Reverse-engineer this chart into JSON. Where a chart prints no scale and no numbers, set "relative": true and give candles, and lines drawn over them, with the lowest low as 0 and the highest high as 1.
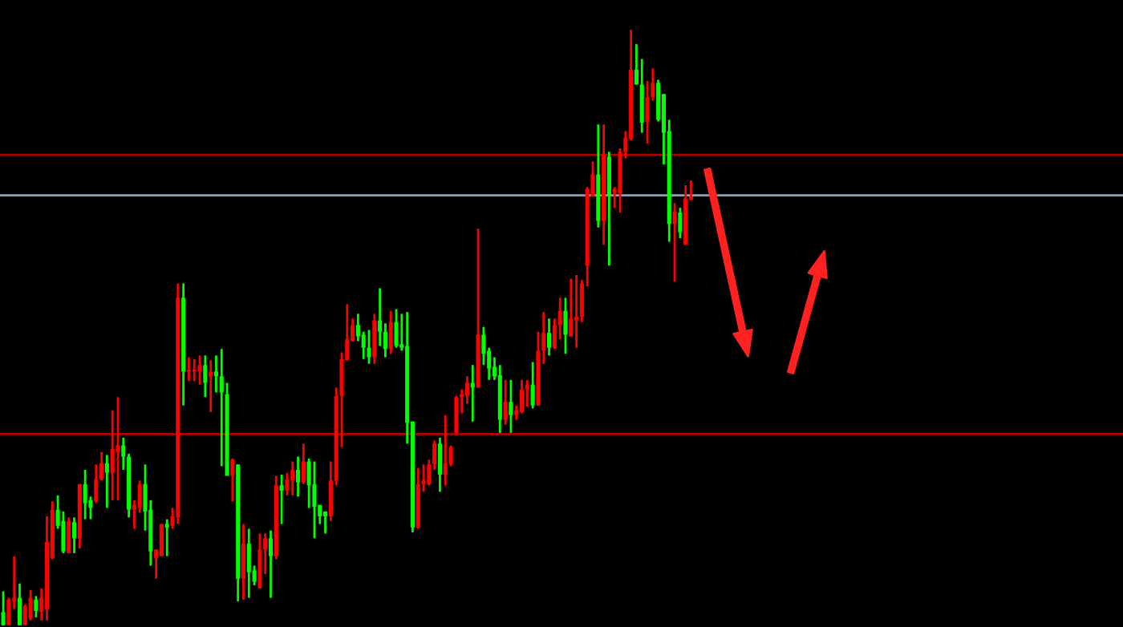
{
  "chart_data": {
    "type": "candlestick",
    "relative": true,
    "categories": [
      null,
      null,
      null,
      null,
      null,
      null,
      null,
      null,
      null,
      null,
      null,
      null,
      null,
      null,
      null,
      null,
      null,
      null,
      null,
      null,
      null,
      null,
      null,
      null,
      null,
      null,
      null,
      null,
      null,
      null,
      null,
      null,
      null,
      null,
      null,
      null,
      null,
      null,
      null,
      null,
      null,
      null,
      null,
      null,
      null,
      null,
      null,
      null,
      null,
      null,
      null,
      null,
      null,
      null,
      null,
      null,
      null,
      null,
      null,
      null,
      null,
      null,
      null,
      null,
      null,
      null,
      null,
      null,
      null,
      null,
      null,
      null,
      null,
      null,
      null,
      null,
      null,
      null,
      null,
      null,
      null,
      null,
      null,
      null,
      null,
      null,
      null,
      null,
      null,
      null,
      null,
      null,
      null,
      null,
      null,
      null,
      null,
      null,
      null,
      null,
      null,
      null,
      null,
      null,
      null,
      null,
      null,
      null,
      null,
      null,
      null,
      null,
      null,
      null,
      null,
      null,
      null,
      null,
      null,
      null,
      null,
      null,
      null,
      null,
      null,
      null,
      null
    ],
    "ohlc": [
      [
        0.022,
        0.057,
        0,
        0
      ],
      [
        0,
        0.046,
        0,
        0.043
      ],
      [
        0.04,
        0.116,
        0.027,
        0.046
      ],
      [
        0.046,
        0.07,
        0,
        0
      ],
      [
        0,
        0.035,
        0,
        0.032
      ],
      [
        0.011,
        0.059,
        0.008,
        0.046
      ],
      [
        0.043,
        0.049,
        0.013,
        0.024
      ],
      [
        0.022,
        0.062,
        0.008,
        0.046
      ],
      [
        0.027,
        0.183,
        0.008,
        0.14
      ],
      [
        0.113,
        0.208,
        0.111,
        0.194
      ],
      [
        0.194,
        0.218,
        0.162,
        0.167
      ],
      [
        0.175,
        0.191,
        0.121,
        0.124
      ],
      [
        0.121,
        0.181,
        0.121,
        0.175
      ],
      [
        0.173,
        0.181,
        0.121,
        0.146
      ],
      [
        0.146,
        0.237,
        0.129,
        0.237
      ],
      [
        0.237,
        0.261,
        0.178,
        0.205
      ],
      [
        0.21,
        0.216,
        0.178,
        0.197
      ],
      [
        0.208,
        0.27,
        0.205,
        0.245
      ],
      [
        0.245,
        0.291,
        0.243,
        0.272
      ],
      [
        0.272,
        0.286,
        0.197,
        0.256
      ],
      [
        0.256,
        0.361,
        0.21,
        0.296
      ],
      [
        0.291,
        0.383,
        0.21,
        0.302
      ],
      [
        0.302,
        0.315,
        0.261,
        0.283
      ],
      [
        0.283,
        0.288,
        0.181,
        0.194
      ],
      [
        0.194,
        0.21,
        0.162,
        0.202
      ],
      [
        0.197,
        0.243,
        0.189,
        0.237
      ],
      [
        0.237,
        0.27,
        0.159,
        0.191
      ],
      [
        0.194,
        0.21,
        0.1,
        0.124
      ],
      [
        0.113,
        0.127,
        0.078,
        0.127
      ],
      [
        0.116,
        0.17,
        0.116,
        0.17
      ],
      [
        0.17,
        0.178,
        0.116,
        0.164
      ],
      [
        0.167,
        0.197,
        0.162,
        0.183
      ],
      [
        0.181,
        0.574,
        0.17,
        0.55
      ],
      [
        0.55,
        0.574,
        0.369,
        0.426
      ],
      [
        0.426,
        0.45,
        0.41,
        0.429
      ],
      [
        0.426,
        0.447,
        0.41,
        0.429
      ],
      [
        0.426,
        0.453,
        0.404,
        0.437
      ],
      [
        0.437,
        0.453,
        0.383,
        0.407
      ],
      [
        0.418,
        0.445,
        0.358,
        0.426
      ],
      [
        0.426,
        0.453,
        0.391,
        0.418
      ],
      [
        0.418,
        0.464,
        0.267,
        0.391
      ],
      [
        0.388,
        0.407,
        0.251,
        0.251
      ],
      [
        0.251,
        0.28,
        0.208,
        0.278
      ],
      [
        0.27,
        0.27,
        0.04,
        0.078
      ],
      [
        0.078,
        0.17,
        0.043,
        0.137
      ],
      [
        0.137,
        0.162,
        0.046,
        0.089
      ],
      [
        0.092,
        0.1,
        0.067,
        0.073
      ],
      [
        0.062,
        0.154,
        0.062,
        0.127
      ],
      [
        0.127,
        0.154,
        0.086,
        0.146
      ],
      [
        0.146,
        0.159,
        0.046,
        0.116
      ],
      [
        0.116,
        0.251,
        0.111,
        0.235
      ],
      [
        0.235,
        0.253,
        0.17,
        0.226
      ],
      [
        0.226,
        0.256,
        0.218,
        0.245
      ],
      [
        0.243,
        0.275,
        0.218,
        0.261
      ],
      [
        0.261,
        0.283,
        0.216,
        0.24
      ],
      [
        0.24,
        0.305,
        0.237,
        0.275
      ],
      [
        0.275,
        0.28,
        0.197,
        0.235
      ],
      [
        0.237,
        0.275,
        0.146,
        0.199
      ],
      [
        0.202,
        0.202,
        0.17,
        0.183
      ],
      [
        0.191,
        0.191,
        0.154,
        0.183
      ],
      [
        0.183,
        0.275,
        0.175,
        0.243
      ],
      [
        0.243,
        0.399,
        0.235,
        0.385
      ],
      [
        0.385,
        0.458,
        0.299,
        0.447
      ],
      [
        0.445,
        0.539,
        0.445,
        0.48
      ],
      [
        0.477,
        0.515,
        0.477,
        0.504
      ],
      [
        0.504,
        0.523,
        0.477,
        0.485
      ],
      [
        0.488,
        0.493,
        0.447,
        0.466
      ],
      [
        0.466,
        0.496,
        0.439,
        0.45
      ],
      [
        0.45,
        0.523,
        0.439,
        0.512
      ],
      [
        0.512,
        0.566,
        0.469,
        0.493
      ],
      [
        0.493,
        0.507,
        0.45,
        0.464
      ],
      [
        0.464,
        0.528,
        0.456,
        0.509
      ],
      [
        0.509,
        0.531,
        0.466,
        0.469
      ],
      [
        0.472,
        0.523,
        0.461,
        0.466
      ],
      [
        0.469,
        0.526,
        0.305,
        0.34
      ],
      [
        0.342,
        0.342,
        0.156,
        0.164
      ],
      [
        0.164,
        0.264,
        0.162,
        0.237
      ],
      [
        0.237,
        0.27,
        0.224,
        0.243
      ],
      [
        0.237,
        0.278,
        0.235,
        0.27
      ],
      [
        0.27,
        0.31,
        0.261,
        0.305
      ],
      [
        0.305,
        0.315,
        0.224,
        0.253
      ],
      [
        0.253,
        0.353,
        0.235,
        0.272
      ],
      [
        0.27,
        0.302,
        0.267,
        0.299
      ],
      [
        0.323,
        0.385,
        0.321,
        0.383
      ],
      [
        0.383,
        0.396,
        0.356,
        0.388
      ],
      [
        0.385,
        0.418,
        0.372,
        0.407
      ],
      [
        0.407,
        0.437,
        0.342,
        0.399
      ],
      [
        0.399,
        0.666,
        0.399,
        0.488
      ],
      [
        0.488,
        0.501,
        0.437,
        0.456
      ],
      [
        0.461,
        0.466,
        0.412,
        0.431
      ],
      [
        0.434,
        0.45,
        0.412,
        0.418
      ],
      [
        0.42,
        0.437,
        0.323,
        0.345
      ],
      [
        0.345,
        0.412,
        0.337,
        0.375
      ],
      [
        0.375,
        0.412,
        0.323,
        0.353
      ],
      [
        0.353,
        0.369,
        0.345,
        0.361
      ],
      [
        0.358,
        0.412,
        0.356,
        0.396
      ],
      [
        0.396,
        0.412,
        0.367,
        0.404
      ],
      [
        0.404,
        0.442,
        0.364,
        0.369
      ],
      [
        0.369,
        0.493,
        0.369,
        0.461
      ],
      [
        0.461,
        0.526,
        0.439,
        0.491
      ],
      [
        0.491,
        0.515,
        0.453,
        0.466
      ],
      [
        0.466,
        0.515,
        0.464,
        0.504
      ],
      [
        0.504,
        0.55,
        0.48,
        0.528
      ],
      [
        0.528,
        0.55,
        0.456,
        0.488
      ],
      [
        0.485,
        0.582,
        0.485,
        0.515
      ],
      [
        0.512,
        0.588,
        0.466,
        0.518
      ],
      [
        0.518,
        0.58,
        0.509,
        0.574
      ],
      [
        0.604,
        0.736,
        0.569,
        0.733
      ],
      [
        0.72,
        0.779,
        0.72,
        0.757
      ],
      [
        0.757,
        0.841,
        0.668,
        0.679
      ],
      [
        0.679,
        0.841,
        0.639,
        0.79
      ],
      [
        0.787,
        0.795,
        0.604,
        0.722
      ],
      [
        0.725,
        0.736,
        0.701,
        0.733
      ],
      [
        0.725,
        0.801,
        0.693,
        0.795
      ],
      [
        0.795,
        0.83,
        0.784,
        0.819
      ],
      [
        0.817,
        1,
        0.814,
        0.933
      ],
      [
        0.933,
        0.976,
        0.908,
        0.908
      ],
      [
        0.908,
        0.951,
        0.827,
        0.844
      ],
      [
        0.846,
        0.914,
        0.809,
        0.887
      ],
      [
        0.887,
        0.935,
        0.881,
        0.911
      ],
      [
        0.911,
        0.916,
        0.846,
        0.849
      ],
      [
        0.892,
        0.892,
        0.774,
        0.827
      ],
      [
        0.83,
        0.849,
        0.644,
        0.674
      ],
      [
        0.674,
        0.709,
        0.577,
        0.695
      ],
      [
        0.693,
        0.701,
        0.65,
        0.66
      ],
      [
        0.639,
        0.739,
        0.639,
        0.717
      ],
      [
        0.714,
        0.747,
        0.714,
        0.72
      ]
    ],
    "colors": [
      "#00ff00",
      "#ff0000",
      "#ff0000",
      "#00ff00",
      "#ff0000",
      "#ff0000",
      "#00ff00",
      "#ff0000",
      "#ff0000",
      "#ff0000",
      "#00ff00",
      "#00ff00",
      "#ff0000",
      "#00ff00",
      "#ff0000",
      "#00ff00",
      "#00ff00",
      "#ff0000",
      "#ff0000",
      "#00ff00",
      "#ff0000",
      "#ff0000",
      "#00ff00",
      "#00ff00",
      "#ff0000",
      "#ff0000",
      "#00ff00",
      "#00ff00",
      "#ff0000",
      "#ff0000",
      "#00ff00",
      "#ff0000",
      "#ff0000",
      "#00ff00",
      "#ff0000",
      "#ff0000",
      "#ff0000",
      "#00ff00",
      "#ff0000",
      "#00ff00",
      "#00ff00",
      "#00ff00",
      "#ff0000",
      "#00ff00",
      "#ff0000",
      "#00ff00",
      "#00ff00",
      "#ff0000",
      "#ff0000",
      "#00ff00",
      "#ff0000",
      "#00ff00",
      "#ff0000",
      "#ff0000",
      "#00ff00",
      "#ff0000",
      "#00ff00",
      "#00ff00",
      "#00ff00",
      "#00ff00",
      "#ff0000",
      "#ff0000",
      "#ff0000",
      "#ff0000",
      "#ff0000",
      "#00ff00",
      "#00ff00",
      "#00ff00",
      "#ff0000",
      "#00ff00",
      "#00ff00",
      "#ff0000",
      "#00ff00",
      "#00ff00",
      "#00ff00",
      "#00ff00",
      "#ff0000",
      "#ff0000",
      "#ff0000",
      "#ff0000",
      "#00ff00",
      "#ff0000",
      "#ff0000",
      "#ff0000",
      "#ff0000",
      "#ff0000",
      "#00ff00",
      "#ff0000",
      "#00ff00",
      "#00ff00",
      "#00ff00",
      "#00ff00",
      "#ff0000",
      "#00ff00",
      "#ff0000",
      "#ff0000",
      "#ff0000",
      "#00ff00",
      "#ff0000",
      "#ff0000",
      "#00ff00",
      "#ff0000",
      "#ff0000",
      "#00ff00",
      "#ff0000",
      "#ff0000",
      "#ff0000",
      "#ff0000",
      "#ff0000",
      "#00ff00",
      "#ff0000",
      "#00ff00",
      "#ff0000",
      "#ff0000",
      "#ff0000",
      "#ff0000",
      "#00ff00",
      "#00ff00",
      "#ff0000",
      "#ff0000",
      "#00ff00",
      "#00ff00",
      "#00ff00",
      "#ff0000",
      "#00ff00",
      "#ff0000",
      "#ff0000"
    ],
    "ref_lines": [
      {
        "axis": "y",
        "value": 0.79,
        "color": "#b00000"
      },
      {
        "axis": "y",
        "value": 0.722,
        "color": "#8fa0b8"
      },
      {
        "axis": "y",
        "value": 0.321,
        "color": "#b00000"
      }
    ],
    "legend": false
  }
}
